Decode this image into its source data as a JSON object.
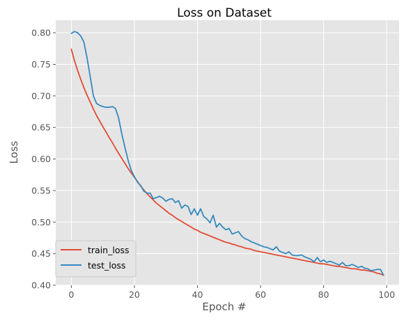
{
  "chart_data": {
    "type": "line",
    "title": "Loss on Dataset",
    "xlabel": "Epoch #",
    "ylabel": "Loss",
    "xlim": [
      -4.95,
      103.95
    ],
    "ylim": [
      0.4,
      0.82
    ],
    "xticks": [
      0,
      20,
      40,
      60,
      80,
      100
    ],
    "yticks": [
      0.4,
      0.45,
      0.5,
      0.55,
      0.6,
      0.65,
      0.7,
      0.75,
      0.8
    ],
    "grid": true,
    "legend_position": "lower-left",
    "colors": {
      "background": "#e5e5e5",
      "grid": "#ffffff",
      "train_loss": "#e24a33",
      "test_loss": "#348abd"
    },
    "series": [
      {
        "name": "train_loss",
        "color": "#e24a33",
        "x": [
          0,
          1,
          2,
          3,
          4,
          5,
          6,
          7,
          8,
          9,
          10,
          11,
          12,
          13,
          14,
          15,
          16,
          17,
          18,
          19,
          20,
          21,
          22,
          23,
          24,
          25,
          26,
          27,
          28,
          29,
          30,
          31,
          32,
          33,
          34,
          35,
          36,
          37,
          38,
          39,
          40,
          41,
          42,
          43,
          44,
          45,
          46,
          47,
          48,
          49,
          50,
          51,
          52,
          53,
          54,
          55,
          56,
          57,
          58,
          59,
          60,
          61,
          62,
          63,
          64,
          65,
          66,
          67,
          68,
          69,
          70,
          71,
          72,
          73,
          74,
          75,
          76,
          77,
          78,
          79,
          80,
          81,
          82,
          83,
          84,
          85,
          86,
          87,
          88,
          89,
          90,
          91,
          92,
          93,
          94,
          95,
          96,
          97,
          98,
          99
        ],
        "values": [
          0.774,
          0.756,
          0.74,
          0.726,
          0.713,
          0.701,
          0.69,
          0.679,
          0.669,
          0.66,
          0.651,
          0.643,
          0.634,
          0.626,
          0.617,
          0.609,
          0.601,
          0.593,
          0.585,
          0.578,
          0.571,
          0.564,
          0.557,
          0.551,
          0.545,
          0.54,
          0.535,
          0.53,
          0.526,
          0.522,
          0.518,
          0.514,
          0.511,
          0.507,
          0.504,
          0.501,
          0.498,
          0.495,
          0.492,
          0.489,
          0.487,
          0.484,
          0.482,
          0.48,
          0.478,
          0.476,
          0.474,
          0.472,
          0.47,
          0.468,
          0.467,
          0.465,
          0.464,
          0.462,
          0.461,
          0.459,
          0.458,
          0.457,
          0.455,
          0.454,
          0.453,
          0.452,
          0.451,
          0.45,
          0.449,
          0.448,
          0.447,
          0.446,
          0.445,
          0.444,
          0.443,
          0.442,
          0.441,
          0.44,
          0.439,
          0.438,
          0.437,
          0.436,
          0.435,
          0.434,
          0.434,
          0.433,
          0.432,
          0.431,
          0.43,
          0.43,
          0.429,
          0.428,
          0.427,
          0.426,
          0.426,
          0.425,
          0.424,
          0.424,
          0.423,
          0.422,
          0.421,
          0.419,
          0.418,
          0.416
        ]
      },
      {
        "name": "test_loss",
        "color": "#348abd",
        "x": [
          0,
          1,
          2,
          3,
          4,
          5,
          6,
          7,
          8,
          9,
          10,
          11,
          12,
          13,
          14,
          15,
          16,
          17,
          18,
          19,
          20,
          21,
          22,
          23,
          24,
          25,
          26,
          27,
          28,
          29,
          30,
          31,
          32,
          33,
          34,
          35,
          36,
          37,
          38,
          39,
          40,
          41,
          42,
          43,
          44,
          45,
          46,
          47,
          48,
          49,
          50,
          51,
          52,
          53,
          54,
          55,
          56,
          57,
          58,
          59,
          60,
          61,
          62,
          63,
          64,
          65,
          66,
          67,
          68,
          69,
          70,
          71,
          72,
          73,
          74,
          75,
          76,
          77,
          78,
          79,
          80,
          81,
          82,
          83,
          84,
          85,
          86,
          87,
          88,
          89,
          90,
          91,
          92,
          93,
          94,
          95,
          96,
          97,
          98,
          99
        ],
        "values": [
          0.799,
          0.802,
          0.8,
          0.795,
          0.785,
          0.76,
          0.73,
          0.7,
          0.688,
          0.685,
          0.683,
          0.682,
          0.682,
          0.683,
          0.68,
          0.665,
          0.64,
          0.618,
          0.598,
          0.582,
          0.572,
          0.563,
          0.558,
          0.549,
          0.546,
          0.546,
          0.537,
          0.539,
          0.541,
          0.538,
          0.533,
          0.536,
          0.537,
          0.531,
          0.534,
          0.522,
          0.527,
          0.525,
          0.512,
          0.521,
          0.511,
          0.521,
          0.509,
          0.505,
          0.499,
          0.511,
          0.492,
          0.498,
          0.492,
          0.488,
          0.49,
          0.481,
          0.483,
          0.485,
          0.478,
          0.474,
          0.472,
          0.469,
          0.467,
          0.465,
          0.463,
          0.461,
          0.46,
          0.458,
          0.456,
          0.461,
          0.454,
          0.452,
          0.45,
          0.453,
          0.448,
          0.447,
          0.447,
          0.448,
          0.445,
          0.443,
          0.441,
          0.437,
          0.444,
          0.437,
          0.44,
          0.436,
          0.438,
          0.436,
          0.434,
          0.432,
          0.436,
          0.431,
          0.431,
          0.433,
          0.431,
          0.428,
          0.43,
          0.427,
          0.426,
          0.423,
          0.424,
          0.425,
          0.425,
          0.416
        ]
      }
    ]
  }
}
